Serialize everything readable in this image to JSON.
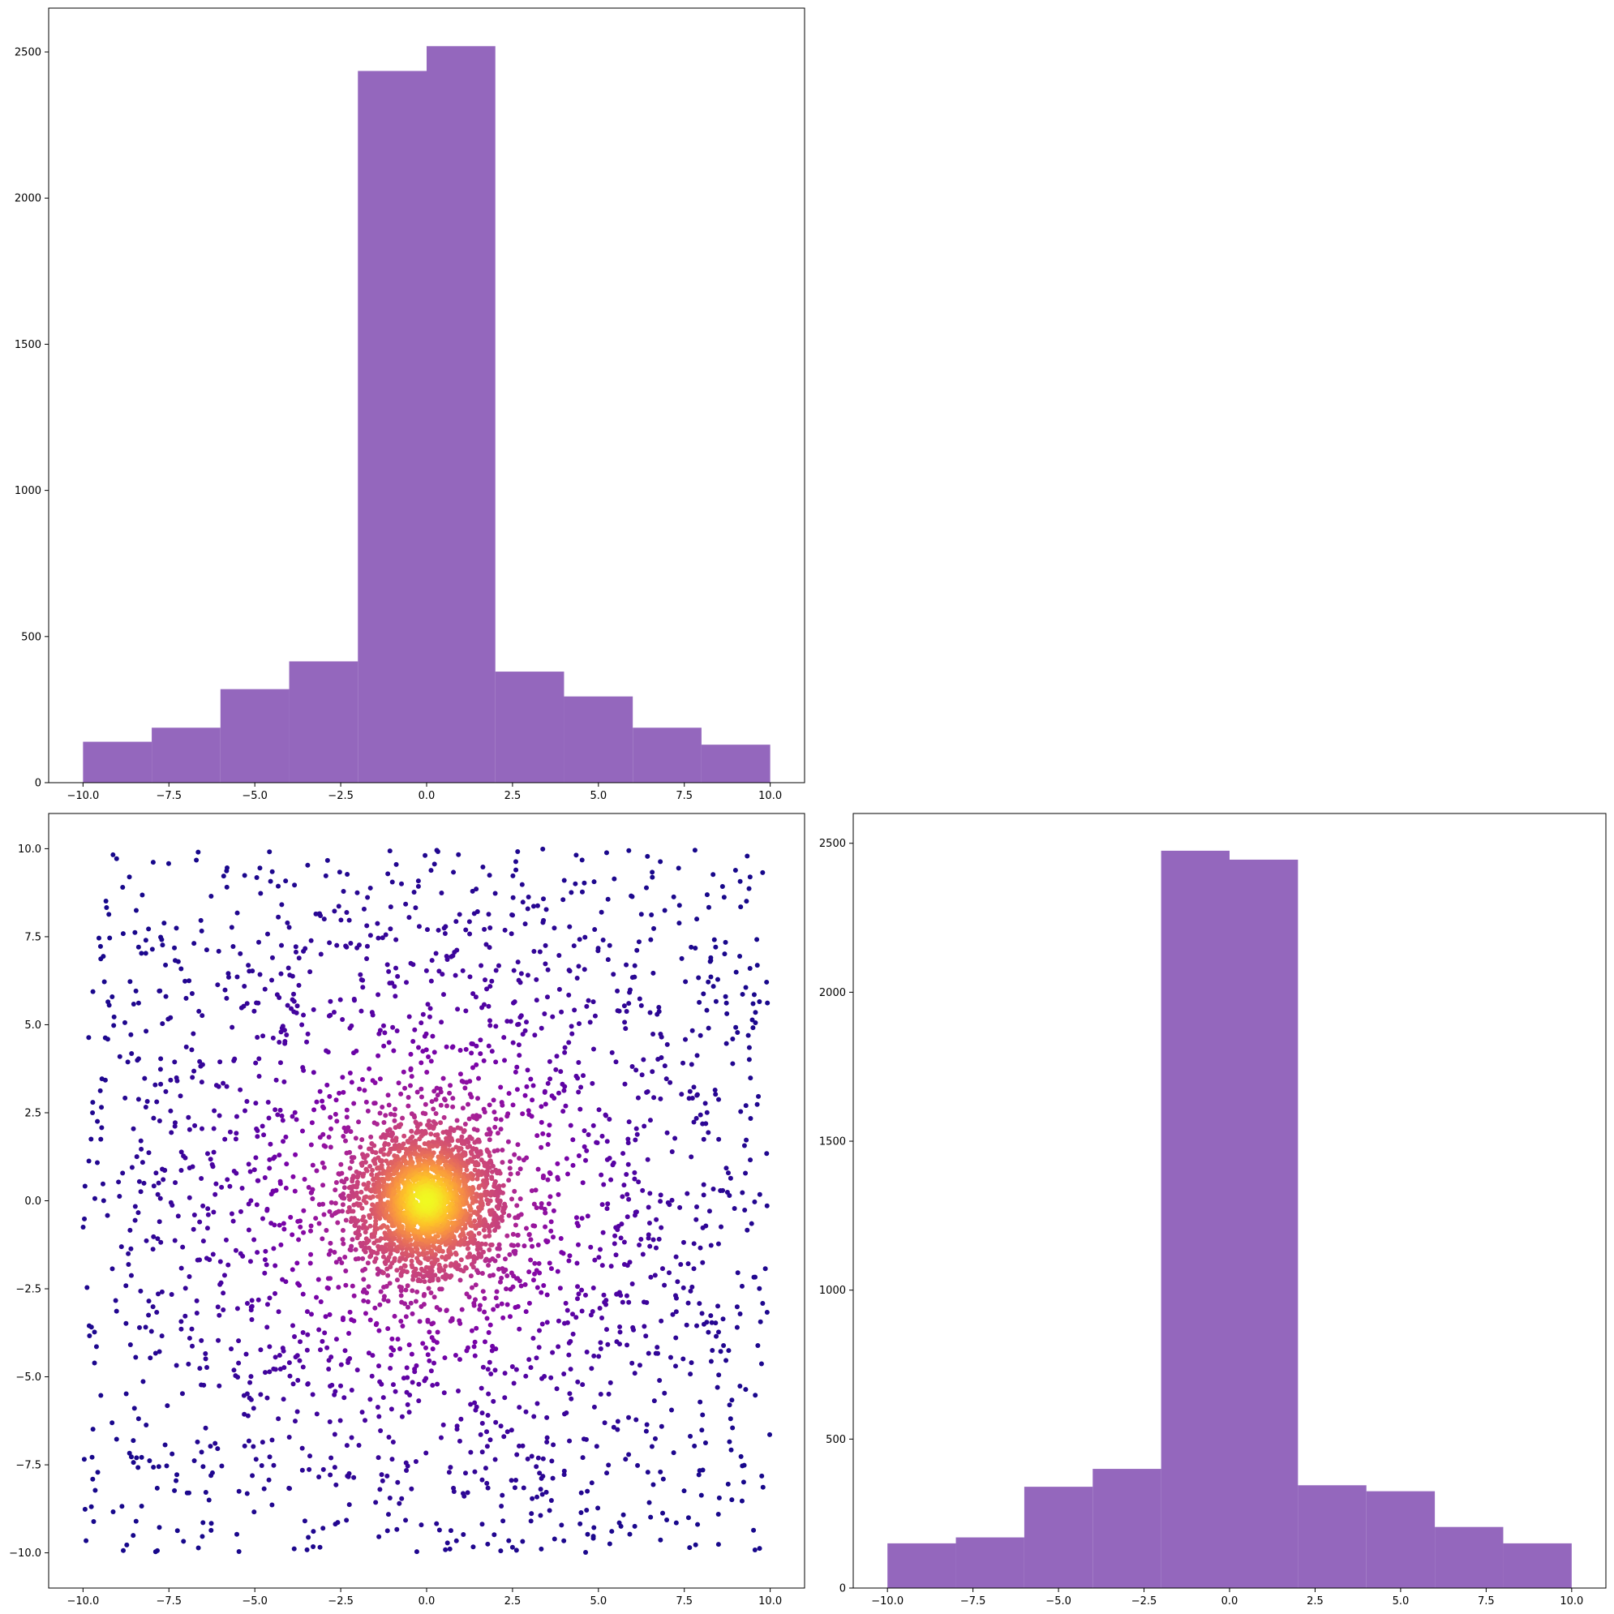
{
  "chart_data": [
    {
      "type": "bar",
      "panel": "top-left",
      "bin_edges": [
        -10,
        -8,
        -6,
        -4,
        -2,
        0,
        2,
        4,
        6,
        8,
        10
      ],
      "values": [
        140,
        188,
        320,
        415,
        2435,
        2520,
        380,
        295,
        188,
        130
      ],
      "xlim": [
        -11,
        11
      ],
      "ylim": [
        0,
        2650
      ],
      "xticks": [
        "−10.0",
        "−7.5",
        "−5.0",
        "−2.5",
        "0.0",
        "2.5",
        "5.0",
        "7.5",
        "10.0"
      ],
      "yticks": [
        "0",
        "500",
        "1000",
        "1500",
        "2000",
        "2500"
      ],
      "color": "#9467bd"
    },
    {
      "type": "scatter",
      "panel": "bottom-left",
      "description_of_distribution": {
        "core": {
          "center": [
            0,
            0
          ],
          "spread": 1.0,
          "count": 2200
        },
        "uniform_background": {
          "range": [
            -10,
            10
          ],
          "count": 1300
        },
        "halo": {
          "radius_range": [
            2.4,
            9
          ],
          "count": 1000
        }
      },
      "xlim": [
        -11,
        11
      ],
      "ylim": [
        -11,
        11
      ],
      "xticks": [
        "−10.0",
        "−7.5",
        "−5.0",
        "−2.5",
        "0.0",
        "2.5",
        "5.0",
        "7.5",
        "10.0"
      ],
      "yticks": [
        "−10.0",
        "−7.5",
        "−5.0",
        "−2.5",
        "0.0",
        "2.5",
        "5.0",
        "7.5",
        "10.0"
      ],
      "colormap": "plasma"
    },
    {
      "type": "bar",
      "panel": "bottom-right",
      "bin_edges": [
        -10,
        -8,
        -6,
        -4,
        -2,
        0,
        2,
        4,
        6,
        8,
        10
      ],
      "values": [
        150,
        170,
        340,
        400,
        2475,
        2445,
        345,
        325,
        205,
        150
      ],
      "xlim": [
        -11,
        11
      ],
      "ylim": [
        0,
        2600
      ],
      "xticks": [
        "−10.0",
        "−7.5",
        "−5.0",
        "−2.5",
        "0.0",
        "2.5",
        "5.0",
        "7.5",
        "10.0"
      ],
      "yticks": [
        "0",
        "500",
        "1000",
        "1500",
        "2000",
        "2500"
      ],
      "color": "#9467bd"
    }
  ]
}
